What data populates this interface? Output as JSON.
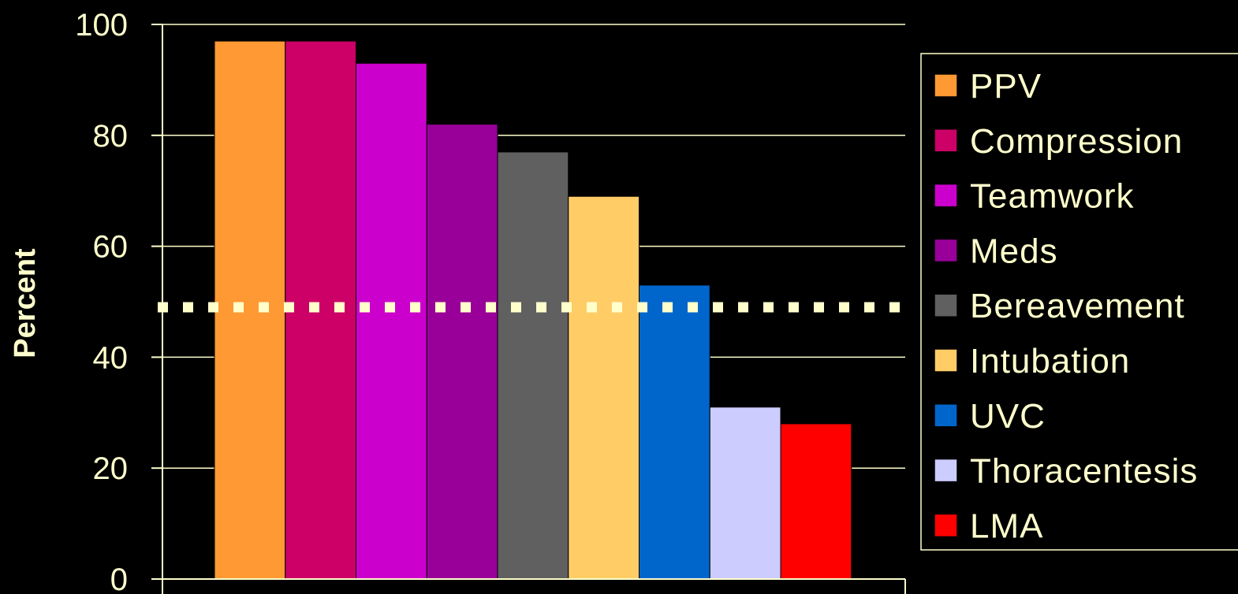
{
  "chart_data": {
    "type": "bar",
    "categories": [
      "PPV",
      "Compression",
      "Teamwork",
      "Meds",
      "Bereavement",
      "Intubation",
      "UVC",
      "Thoracentesis",
      "LMA"
    ],
    "values": [
      97,
      97,
      93,
      82,
      77,
      69,
      53,
      31,
      28
    ],
    "colors": [
      "#FF9933",
      "#CC0066",
      "#CC00CC",
      "#990099",
      "#606060",
      "#FFCC66",
      "#0066CC",
      "#CCCCFF",
      "#FF0000"
    ],
    "ylabel": "Percent",
    "ylim": [
      0,
      100
    ],
    "yticks": [
      "0",
      "20",
      "40",
      "60",
      "80",
      "100"
    ],
    "grid": true,
    "legend_position": "right",
    "reference_line": {
      "value": 49,
      "style": "dotted",
      "color": "#FFFFCC"
    },
    "axis_color": "#FFFFCC",
    "background": "#000000"
  }
}
